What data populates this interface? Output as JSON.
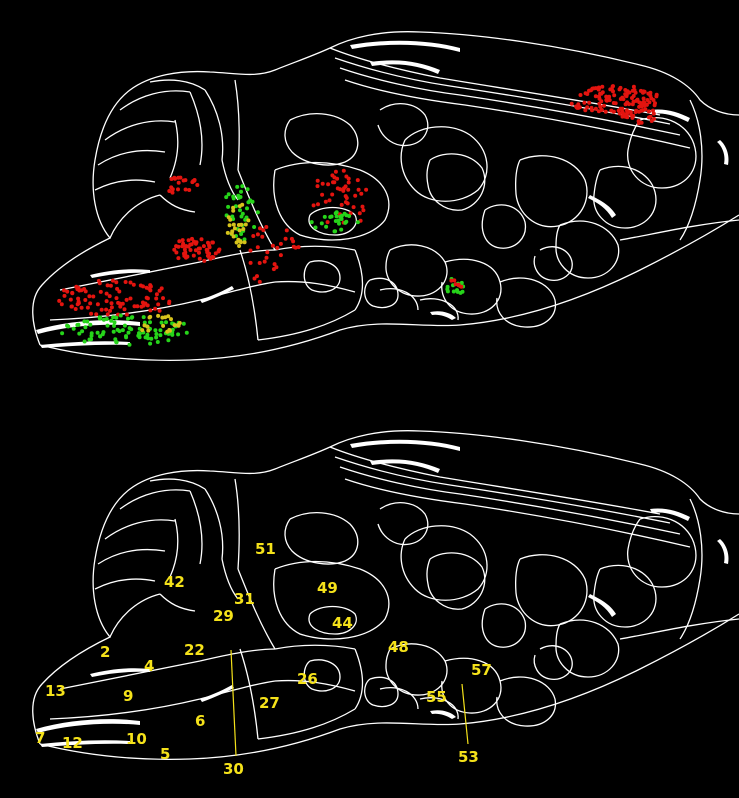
{
  "colors": {
    "background": "#000000",
    "outline": "#ffffff",
    "label": "#f5e21a",
    "marker_red": "#e3140f",
    "marker_green": "#26d41a",
    "marker_yellow": "#d6c21b"
  },
  "region_labels": [
    "2",
    "4",
    "5",
    "6",
    "7",
    "9",
    "10",
    "12",
    "13",
    "22",
    "26",
    "27",
    "29",
    "30",
    "31",
    "42",
    "44",
    "48",
    "49",
    "51",
    "53",
    "55",
    "57"
  ]
}
